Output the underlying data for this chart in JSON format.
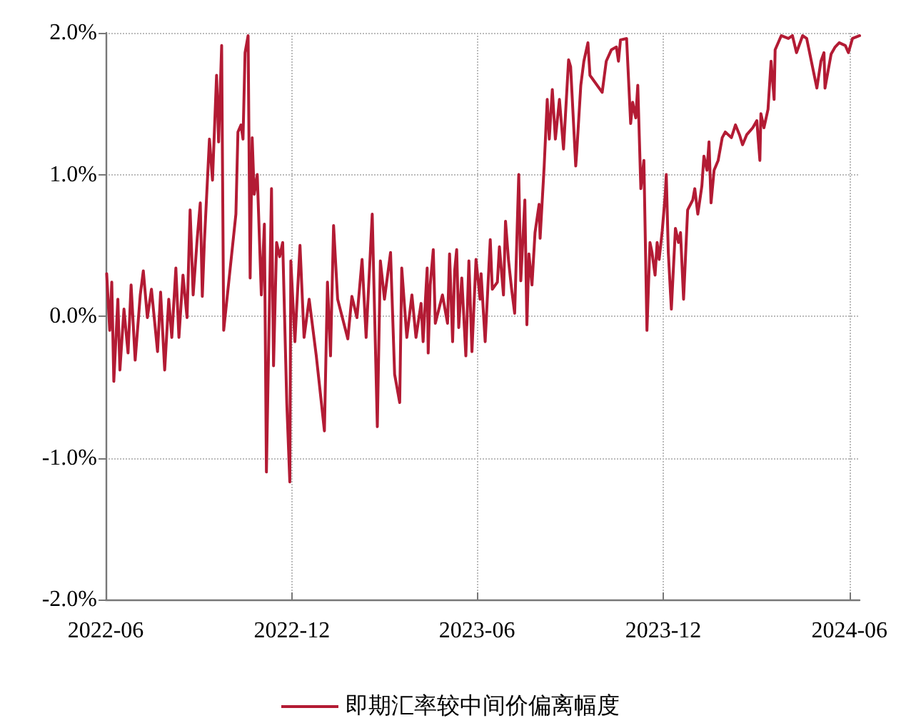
{
  "chart_data": {
    "type": "line",
    "x": [
      "2022-06-02",
      "2022-06-05",
      "2022-06-07",
      "2022-06-09",
      "2022-06-13",
      "2022-06-15",
      "2022-06-19",
      "2022-06-23",
      "2022-06-26",
      "2022-06-30",
      "2022-07-05",
      "2022-07-08",
      "2022-07-12",
      "2022-07-16",
      "2022-07-22",
      "2022-07-25",
      "2022-07-29",
      "2022-08-02",
      "2022-08-05",
      "2022-08-09",
      "2022-08-12",
      "2022-08-16",
      "2022-08-20",
      "2022-08-23",
      "2022-08-26",
      "2022-08-30",
      "2022-09-02",
      "2022-09-04",
      "2022-09-06",
      "2022-09-11",
      "2022-09-14",
      "2022-09-18",
      "2022-09-20",
      "2022-09-23",
      "2022-09-25",
      "2022-10-07",
      "2022-10-09",
      "2022-10-12",
      "2022-10-14",
      "2022-10-16",
      "2022-10-19",
      "2022-10-21",
      "2022-10-23",
      "2022-10-25",
      "2022-10-28",
      "2022-11-01",
      "2022-11-04",
      "2022-11-06",
      "2022-11-11",
      "2022-11-13",
      "2022-11-16",
      "2022-11-19",
      "2022-11-22",
      "2022-11-26",
      "2022-11-29",
      "2022-11-30",
      "2022-12-04",
      "2022-12-09",
      "2022-12-13",
      "2022-12-18",
      "2022-12-25",
      "2022-12-30",
      "2023-01-02",
      "2023-01-05",
      "2023-01-08",
      "2023-01-11",
      "2023-01-15",
      "2023-01-25",
      "2023-01-29",
      "2023-02-03",
      "2023-02-08",
      "2023-02-12",
      "2023-02-18",
      "2023-02-23",
      "2023-02-26",
      "2023-03-02",
      "2023-03-08",
      "2023-03-12",
      "2023-03-17",
      "2023-03-19",
      "2023-03-24",
      "2023-03-29",
      "2023-04-02",
      "2023-04-07",
      "2023-04-09",
      "2023-04-13",
      "2023-04-14",
      "2023-04-16",
      "2023-04-19",
      "2023-04-21",
      "2023-04-28",
      "2023-05-03",
      "2023-05-05",
      "2023-05-08",
      "2023-05-10",
      "2023-05-12",
      "2023-05-14",
      "2023-05-17",
      "2023-05-21",
      "2023-05-24",
      "2023-05-27",
      "2023-05-31",
      "2023-06-04",
      "2023-06-05",
      "2023-06-09",
      "2023-06-14",
      "2023-06-16",
      "2023-06-21",
      "2023-06-23",
      "2023-06-27",
      "2023-06-29",
      "2023-07-02",
      "2023-07-05",
      "2023-07-08",
      "2023-07-12",
      "2023-07-14",
      "2023-07-18",
      "2023-07-20",
      "2023-07-22",
      "2023-07-25",
      "2023-07-28",
      "2023-08-01",
      "2023-08-02",
      "2023-08-06",
      "2023-08-09",
      "2023-08-11",
      "2023-08-14",
      "2023-08-17",
      "2023-08-21",
      "2023-08-25",
      "2023-08-30",
      "2023-09-01",
      "2023-09-06",
      "2023-09-07",
      "2023-09-11",
      "2023-09-14",
      "2023-09-18",
      "2023-09-20",
      "2023-09-22",
      "2023-10-02",
      "2023-10-06",
      "2023-10-11",
      "2023-10-16",
      "2023-10-18",
      "2023-10-20",
      "2023-10-26",
      "2023-10-30",
      "2023-11-01",
      "2023-11-04",
      "2023-11-06",
      "2023-11-09",
      "2023-11-12",
      "2023-11-15",
      "2023-11-18",
      "2023-11-20",
      "2023-11-23",
      "2023-11-25",
      "2023-11-27",
      "2023-11-30",
      "2023-12-03",
      "2023-12-04",
      "2023-12-06",
      "2023-12-09",
      "2023-12-13",
      "2023-12-16",
      "2023-12-18",
      "2023-12-21",
      "2023-12-25",
      "2023-12-30",
      "2024-01-01",
      "2024-01-04",
      "2024-01-08",
      "2024-01-10",
      "2024-01-13",
      "2024-01-15",
      "2024-01-17",
      "2024-01-20",
      "2024-01-24",
      "2024-01-28",
      "2024-01-31",
      "2024-02-06",
      "2024-02-10",
      "2024-02-14",
      "2024-02-17",
      "2024-02-21",
      "2024-02-27",
      "2024-03-02",
      "2024-03-05",
      "2024-03-06",
      "2024-03-09",
      "2024-03-13",
      "2024-03-16",
      "2024-03-19",
      "2024-03-20",
      "2024-03-26",
      "2024-04-02",
      "2024-04-06",
      "2024-04-10",
      "2024-04-16",
      "2024-04-20",
      "2024-04-30",
      "2024-05-04",
      "2024-05-07",
      "2024-05-08",
      "2024-05-14",
      "2024-05-18",
      "2024-05-22",
      "2024-05-28",
      "2024-05-31",
      "2024-06-04",
      "2024-06-11"
    ],
    "series": [
      {
        "name": "即期汇率较中间价偏离幅度",
        "color": "#b31b34",
        "values": [
          0.3,
          -0.1,
          0.24,
          -0.46,
          0.12,
          -0.38,
          0.05,
          -0.26,
          0.22,
          -0.31,
          0.15,
          0.32,
          -0.01,
          0.19,
          -0.25,
          0.17,
          -0.38,
          0.12,
          -0.15,
          0.34,
          -0.15,
          0.29,
          -0.01,
          0.75,
          0.15,
          0.55,
          0.8,
          0.14,
          0.52,
          1.25,
          0.96,
          1.7,
          1.23,
          1.91,
          -0.1,
          0.72,
          1.3,
          1.35,
          1.25,
          1.86,
          1.98,
          0.27,
          1.26,
          0.86,
          1.0,
          0.15,
          0.65,
          -1.1,
          0.9,
          -0.35,
          0.52,
          0.42,
          0.52,
          -0.61,
          -1.17,
          0.39,
          -0.18,
          0.5,
          -0.15,
          0.12,
          -0.28,
          -0.61,
          -0.81,
          0.24,
          -0.28,
          0.64,
          0.12,
          -0.16,
          0.14,
          -0.01,
          0.4,
          -0.15,
          0.72,
          -0.78,
          0.39,
          0.12,
          0.45,
          -0.41,
          -0.61,
          0.34,
          -0.15,
          0.15,
          -0.15,
          0.09,
          -0.18,
          0.34,
          -0.26,
          0.22,
          0.47,
          -0.05,
          0.15,
          -0.05,
          0.44,
          -0.18,
          0.32,
          0.47,
          -0.08,
          0.27,
          -0.28,
          0.39,
          -0.25,
          0.4,
          0.12,
          0.3,
          -0.18,
          0.54,
          0.19,
          0.24,
          0.49,
          0.15,
          0.67,
          0.39,
          0.19,
          0.02,
          1.0,
          0.25,
          0.82,
          -0.06,
          0.44,
          0.22,
          0.59,
          0.79,
          0.55,
          1.06,
          1.53,
          1.25,
          1.6,
          1.25,
          1.53,
          1.18,
          1.81,
          1.76,
          1.06,
          1.16,
          1.63,
          1.8,
          1.93,
          1.7,
          1.68,
          1.58,
          1.8,
          1.88,
          1.9,
          1.8,
          1.95,
          1.96,
          1.36,
          1.51,
          1.4,
          1.63,
          0.9,
          1.1,
          -0.1,
          0.52,
          0.45,
          0.29,
          0.52,
          0.4,
          0.6,
          0.86,
          1.0,
          0.45,
          0.05,
          0.62,
          0.52,
          0.59,
          0.12,
          0.75,
          0.82,
          0.9,
          0.72,
          0.92,
          1.13,
          1.03,
          1.23,
          0.8,
          1.03,
          1.1,
          1.26,
          1.3,
          1.26,
          1.35,
          1.28,
          1.21,
          1.28,
          1.33,
          1.38,
          1.1,
          1.43,
          1.33,
          1.46,
          1.8,
          1.53,
          1.88,
          1.98,
          1.96,
          1.98,
          1.86,
          1.98,
          1.96,
          1.61,
          1.8,
          1.86,
          1.61,
          1.85,
          1.9,
          1.93,
          1.91,
          1.86,
          1.96,
          1.98
        ]
      }
    ],
    "xlim": [
      "2022-06-01",
      "2024-06-11"
    ],
    "xticks": [
      "2022-06",
      "2022-12",
      "2023-06",
      "2023-12",
      "2024-06"
    ],
    "ylim": [
      -2,
      2
    ],
    "yticks": [
      {
        "value": -2,
        "label": "-2.0%"
      },
      {
        "value": -1,
        "label": "-1.0%"
      },
      {
        "value": 0,
        "label": "0.0%"
      },
      {
        "value": 1,
        "label": "1.0%"
      },
      {
        "value": 2,
        "label": "2.0%"
      }
    ],
    "grid": true,
    "legend": "bottom",
    "marker": "none",
    "line_style": "solid"
  }
}
